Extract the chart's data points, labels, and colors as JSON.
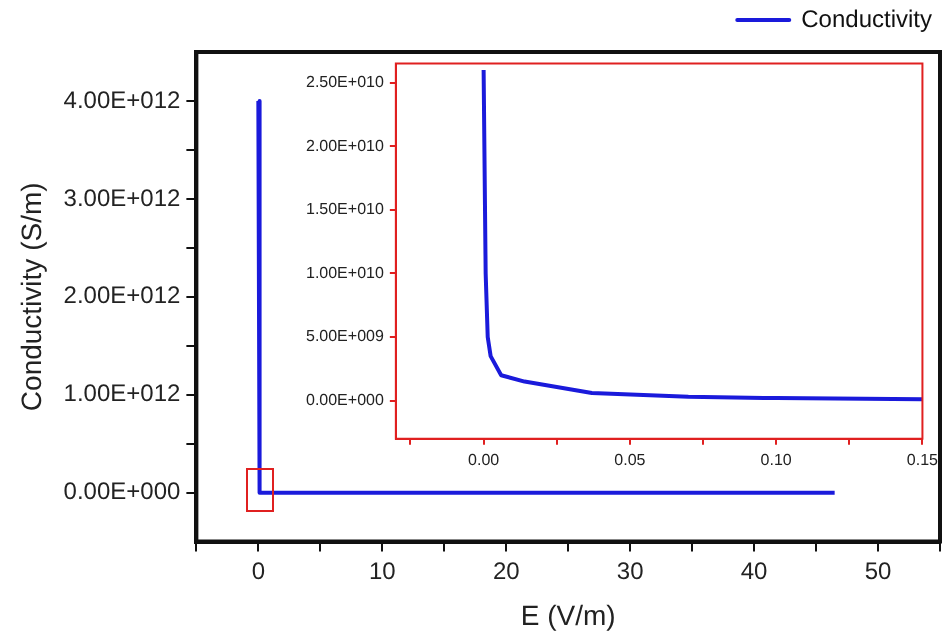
{
  "chart_data": [
    {
      "type": "line",
      "xlabel": "E (V/m)",
      "ylabel": "Conductivity (S/m)",
      "x": [
        0,
        0.1,
        46.5
      ],
      "series": [
        {
          "name": "Conductivity",
          "color": "#1a1adb",
          "values": [
            4000000000000.0,
            0,
            0
          ]
        }
      ],
      "xlim": [
        -5,
        55
      ],
      "ylim": [
        -500000000000.0,
        4500000000000.0
      ],
      "xticks": [
        {
          "value": -5,
          "label": null
        },
        0,
        {
          "value": 5,
          "label": null
        },
        10,
        {
          "value": 15,
          "label": null
        },
        20,
        {
          "value": 25,
          "label": null
        },
        30,
        {
          "value": 35,
          "label": null
        },
        40,
        {
          "value": 45,
          "label": null
        },
        50,
        {
          "value": 55,
          "label": null
        }
      ],
      "yticks": [
        {
          "value": 0,
          "label": "0.00E+000"
        },
        {
          "value": 500000000000.0,
          "label": null
        },
        {
          "value": 1000000000000.0,
          "label": "1.00E+012"
        },
        {
          "value": 1500000000000.0,
          "label": null
        },
        {
          "value": 2000000000000.0,
          "label": "2.00E+012"
        },
        {
          "value": 2500000000000.0,
          "label": null
        },
        {
          "value": 3000000000000.0,
          "label": "3.00E+012"
        },
        {
          "value": 3500000000000.0,
          "label": null
        },
        {
          "value": 4000000000000.0,
          "label": "4.00E+012"
        }
      ],
      "grid": false,
      "legend": "top right"
    },
    {
      "type": "line",
      "x": [
        0,
        0.0007,
        0.0014,
        0.0024,
        0.006,
        0.014,
        0.037,
        0.07,
        0.1,
        0.15
      ],
      "series": [
        {
          "color": "#1a1adb",
          "values": [
            26000000000.0,
            10000000000.0,
            5000000000.0,
            3500000000.0,
            2000000000.0,
            1500000000.0,
            600000000.0,
            300000000.0,
            200000000.0,
            100000000.0
          ]
        }
      ],
      "xlim": [
        -0.03,
        0.15
      ],
      "ylim": [
        -3000000000.0,
        26500000000.0
      ],
      "xticks": [
        {
          "value": -0.025,
          "label": null
        },
        {
          "value": 0,
          "label": "0.00"
        },
        {
          "value": 0.025,
          "label": null
        },
        {
          "value": 0.05,
          "label": "0.05"
        },
        {
          "value": 0.075,
          "label": null
        },
        {
          "value": 0.1,
          "label": "0.10"
        },
        {
          "value": 0.125,
          "label": null
        },
        {
          "value": 0.15,
          "label": "0.15"
        }
      ],
      "yticks": [
        {
          "value": 0,
          "label": "0.00E+000"
        },
        {
          "value": 5000000000.0,
          "label": "5.00E+009"
        },
        {
          "value": 10000000000.0,
          "label": "1.00E+010"
        },
        {
          "value": 15000000000.0,
          "label": "1.50E+010"
        },
        {
          "value": 20000000000.0,
          "label": "2.00E+010"
        },
        {
          "value": 25000000000.0,
          "label": "2.50E+010"
        }
      ],
      "grid": false
    }
  ]
}
